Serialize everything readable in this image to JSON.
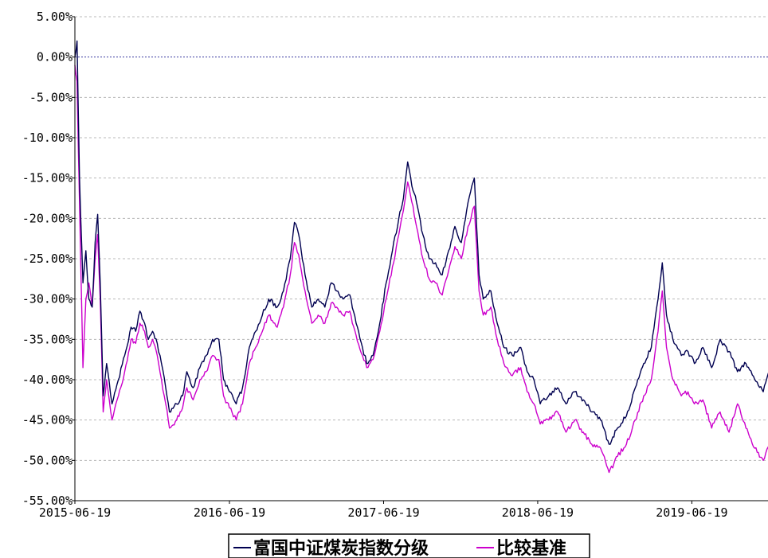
{
  "chart_data": {
    "type": "line",
    "title": "",
    "xlabel": "",
    "ylabel": "",
    "ylim": [
      -55,
      5
    ],
    "y_unit": "%",
    "y_ticks": [
      "5.00%",
      "0.00%",
      "-5.00%",
      "-10.00%",
      "-15.00%",
      "-20.00%",
      "-25.00%",
      "-30.00%",
      "-35.00%",
      "-40.00%",
      "-45.00%",
      "-50.00%",
      "-55.00%"
    ],
    "x_ticks": [
      "2015-06-19",
      "2016-06-19",
      "2017-06-19",
      "2018-06-19",
      "2019-06-19"
    ],
    "grid": true,
    "legend_position": "bottom-center",
    "series": [
      {
        "name": "富国中证煤炭指数分级",
        "color": "#000050",
        "points": [
          [
            "2015-06-19",
            0.0
          ],
          [
            "2015-06-24",
            2.0
          ],
          [
            "2015-06-30",
            -15.0
          ],
          [
            "2015-07-08",
            -28.0
          ],
          [
            "2015-07-15",
            -24.0
          ],
          [
            "2015-07-22",
            -30.0
          ],
          [
            "2015-07-30",
            -31.0
          ],
          [
            "2015-08-06",
            -23.0
          ],
          [
            "2015-08-12",
            -19.5
          ],
          [
            "2015-08-18",
            -28.0
          ],
          [
            "2015-08-25",
            -42.0
          ],
          [
            "2015-09-02",
            -38.0
          ],
          [
            "2015-09-15",
            -43.0
          ],
          [
            "2015-09-30",
            -40.0
          ],
          [
            "2015-10-15",
            -37.0
          ],
          [
            "2015-10-30",
            -33.5
          ],
          [
            "2015-11-10",
            -34.0
          ],
          [
            "2015-11-20",
            -31.5
          ],
          [
            "2015-12-01",
            -33.0
          ],
          [
            "2015-12-10",
            -35.0
          ],
          [
            "2015-12-20",
            -34.0
          ],
          [
            "2015-12-31",
            -35.5
          ],
          [
            "2016-01-10",
            -38.0
          ],
          [
            "2016-01-20",
            -41.0
          ],
          [
            "2016-01-29",
            -44.0
          ],
          [
            "2016-02-15",
            -43.0
          ],
          [
            "2016-02-29",
            -42.0
          ],
          [
            "2016-03-10",
            -39.0
          ],
          [
            "2016-03-25",
            -41.0
          ],
          [
            "2016-04-10",
            -38.5
          ],
          [
            "2016-04-25",
            -37.0
          ],
          [
            "2016-05-10",
            -35.0
          ],
          [
            "2016-05-25",
            -35.0
          ],
          [
            "2016-06-05",
            -40.0
          ],
          [
            "2016-06-19",
            -41.5
          ],
          [
            "2016-07-05",
            -43.0
          ],
          [
            "2016-07-20",
            -41.0
          ],
          [
            "2016-08-05",
            -36.0
          ],
          [
            "2016-08-20",
            -34.0
          ],
          [
            "2016-09-05",
            -32.0
          ],
          [
            "2016-09-20",
            -30.0
          ],
          [
            "2016-10-10",
            -31.0
          ],
          [
            "2016-10-25",
            -29.0
          ],
          [
            "2016-11-10",
            -25.0
          ],
          [
            "2016-11-20",
            -20.5
          ],
          [
            "2016-11-30",
            -22.0
          ],
          [
            "2016-12-15",
            -27.0
          ],
          [
            "2016-12-31",
            -31.0
          ],
          [
            "2017-01-15",
            -30.0
          ],
          [
            "2017-01-31",
            -31.0
          ],
          [
            "2017-02-15",
            -28.0
          ],
          [
            "2017-02-28",
            -29.0
          ],
          [
            "2017-03-15",
            -30.0
          ],
          [
            "2017-03-31",
            -29.5
          ],
          [
            "2017-04-15",
            -33.0
          ],
          [
            "2017-04-30",
            -36.0
          ],
          [
            "2017-05-10",
            -38.0
          ],
          [
            "2017-05-25",
            -37.0
          ],
          [
            "2017-06-10",
            -33.0
          ],
          [
            "2017-06-25",
            -28.0
          ],
          [
            "2017-07-10",
            -24.0
          ],
          [
            "2017-07-25",
            -20.0
          ],
          [
            "2017-08-05",
            -17.5
          ],
          [
            "2017-08-15",
            -13.0
          ],
          [
            "2017-08-25",
            -16.0
          ],
          [
            "2017-09-05",
            -18.0
          ],
          [
            "2017-09-20",
            -22.0
          ],
          [
            "2017-10-05",
            -25.0
          ],
          [
            "2017-10-20",
            -25.5
          ],
          [
            "2017-11-05",
            -27.0
          ],
          [
            "2017-11-20",
            -24.0
          ],
          [
            "2017-12-05",
            -21.0
          ],
          [
            "2017-12-20",
            -23.0
          ],
          [
            "2018-01-05",
            -18.0
          ],
          [
            "2018-01-20",
            -15.0
          ],
          [
            "2018-01-31",
            -27.0
          ],
          [
            "2018-02-10",
            -30.0
          ],
          [
            "2018-02-28",
            -29.0
          ],
          [
            "2018-03-15",
            -33.0
          ],
          [
            "2018-03-31",
            -36.0
          ],
          [
            "2018-04-20",
            -37.0
          ],
          [
            "2018-05-10",
            -36.0
          ],
          [
            "2018-05-25",
            -39.0
          ],
          [
            "2018-06-10",
            -40.0
          ],
          [
            "2018-06-25",
            -43.0
          ],
          [
            "2018-07-15",
            -42.0
          ],
          [
            "2018-08-05",
            -41.0
          ],
          [
            "2018-08-25",
            -43.0
          ],
          [
            "2018-09-15",
            -41.5
          ],
          [
            "2018-10-05",
            -42.5
          ],
          [
            "2018-10-25",
            -44.0
          ],
          [
            "2018-11-15",
            -45.0
          ],
          [
            "2018-12-05",
            -48.0
          ],
          [
            "2018-12-25",
            -46.0
          ],
          [
            "2019-01-15",
            -44.5
          ],
          [
            "2019-02-05",
            -41.0
          ],
          [
            "2019-02-25",
            -38.0
          ],
          [
            "2019-03-15",
            -36.0
          ],
          [
            "2019-03-31",
            -30.0
          ],
          [
            "2019-04-10",
            -25.5
          ],
          [
            "2019-04-20",
            -32.0
          ],
          [
            "2019-05-05",
            -35.0
          ],
          [
            "2019-05-25",
            -37.0
          ],
          [
            "2019-06-10",
            -36.5
          ],
          [
            "2019-06-25",
            -38.0
          ],
          [
            "2019-07-15",
            -36.0
          ],
          [
            "2019-08-05",
            -38.5
          ],
          [
            "2019-08-25",
            -35.0
          ],
          [
            "2019-09-15",
            -36.5
          ],
          [
            "2019-10-05",
            -39.0
          ],
          [
            "2019-10-25",
            -38.0
          ],
          [
            "2019-11-15",
            -40.0
          ],
          [
            "2019-12-05",
            -41.5
          ],
          [
            "2019-12-20",
            -39.0
          ],
          [
            "2019-12-31",
            -38.0
          ]
        ]
      },
      {
        "name": "比较基准",
        "color": "#cc00cc",
        "points": [
          [
            "2015-06-19",
            -1.0
          ],
          [
            "2015-06-24",
            -3.0
          ],
          [
            "2015-06-30",
            -18.0
          ],
          [
            "2015-07-08",
            -38.5
          ],
          [
            "2015-07-15",
            -30.0
          ],
          [
            "2015-07-22",
            -28.0
          ],
          [
            "2015-07-30",
            -31.0
          ],
          [
            "2015-08-06",
            -25.0
          ],
          [
            "2015-08-12",
            -22.0
          ],
          [
            "2015-08-18",
            -30.0
          ],
          [
            "2015-08-25",
            -44.0
          ],
          [
            "2015-09-02",
            -40.0
          ],
          [
            "2015-09-15",
            -45.0
          ],
          [
            "2015-09-30",
            -42.0
          ],
          [
            "2015-10-15",
            -39.0
          ],
          [
            "2015-10-30",
            -35.0
          ],
          [
            "2015-11-10",
            -35.5
          ],
          [
            "2015-11-20",
            -33.0
          ],
          [
            "2015-12-01",
            -34.0
          ],
          [
            "2015-12-10",
            -36.0
          ],
          [
            "2015-12-20",
            -35.0
          ],
          [
            "2015-12-31",
            -37.0
          ],
          [
            "2016-01-10",
            -40.0
          ],
          [
            "2016-01-20",
            -43.0
          ],
          [
            "2016-01-29",
            -46.0
          ],
          [
            "2016-02-15",
            -45.0
          ],
          [
            "2016-02-29",
            -43.5
          ],
          [
            "2016-03-10",
            -41.0
          ],
          [
            "2016-03-25",
            -42.5
          ],
          [
            "2016-04-10",
            -40.0
          ],
          [
            "2016-04-25",
            -39.0
          ],
          [
            "2016-05-10",
            -37.0
          ],
          [
            "2016-05-25",
            -37.5
          ],
          [
            "2016-06-05",
            -42.0
          ],
          [
            "2016-06-19",
            -43.5
          ],
          [
            "2016-07-05",
            -45.0
          ],
          [
            "2016-07-20",
            -43.0
          ],
          [
            "2016-08-05",
            -38.0
          ],
          [
            "2016-08-20",
            -36.0
          ],
          [
            "2016-09-05",
            -34.0
          ],
          [
            "2016-09-20",
            -32.0
          ],
          [
            "2016-10-10",
            -33.5
          ],
          [
            "2016-10-25",
            -31.0
          ],
          [
            "2016-11-10",
            -27.0
          ],
          [
            "2016-11-20",
            -23.0
          ],
          [
            "2016-11-30",
            -24.5
          ],
          [
            "2016-12-15",
            -29.0
          ],
          [
            "2016-12-31",
            -33.0
          ],
          [
            "2017-01-15",
            -32.0
          ],
          [
            "2017-01-31",
            -33.0
          ],
          [
            "2017-02-15",
            -30.5
          ],
          [
            "2017-02-28",
            -31.0
          ],
          [
            "2017-03-15",
            -32.0
          ],
          [
            "2017-03-31",
            -31.5
          ],
          [
            "2017-04-15",
            -34.5
          ],
          [
            "2017-04-30",
            -37.0
          ],
          [
            "2017-05-10",
            -38.5
          ],
          [
            "2017-05-25",
            -37.5
          ],
          [
            "2017-06-10",
            -34.0
          ],
          [
            "2017-06-25",
            -30.0
          ],
          [
            "2017-07-10",
            -26.0
          ],
          [
            "2017-07-25",
            -22.0
          ],
          [
            "2017-08-05",
            -19.0
          ],
          [
            "2017-08-15",
            -15.5
          ],
          [
            "2017-08-25",
            -18.0
          ],
          [
            "2017-09-05",
            -21.0
          ],
          [
            "2017-09-20",
            -25.0
          ],
          [
            "2017-10-05",
            -27.5
          ],
          [
            "2017-10-20",
            -28.0
          ],
          [
            "2017-11-05",
            -29.5
          ],
          [
            "2017-11-20",
            -26.5
          ],
          [
            "2017-12-05",
            -23.5
          ],
          [
            "2017-12-20",
            -25.0
          ],
          [
            "2018-01-05",
            -21.0
          ],
          [
            "2018-01-20",
            -18.5
          ],
          [
            "2018-01-31",
            -29.0
          ],
          [
            "2018-02-10",
            -32.0
          ],
          [
            "2018-02-28",
            -31.0
          ],
          [
            "2018-03-15",
            -35.0
          ],
          [
            "2018-03-31",
            -38.0
          ],
          [
            "2018-04-20",
            -39.5
          ],
          [
            "2018-05-10",
            -38.5
          ],
          [
            "2018-05-25",
            -41.5
          ],
          [
            "2018-06-10",
            -43.0
          ],
          [
            "2018-06-25",
            -45.5
          ],
          [
            "2018-07-15",
            -45.0
          ],
          [
            "2018-08-05",
            -44.0
          ],
          [
            "2018-08-25",
            -46.5
          ],
          [
            "2018-09-15",
            -45.0
          ],
          [
            "2018-10-05",
            -46.5
          ],
          [
            "2018-10-25",
            -48.0
          ],
          [
            "2018-11-15",
            -48.5
          ],
          [
            "2018-12-05",
            -51.5
          ],
          [
            "2018-12-25",
            -49.5
          ],
          [
            "2019-01-15",
            -48.0
          ],
          [
            "2019-02-05",
            -45.0
          ],
          [
            "2019-02-25",
            -42.0
          ],
          [
            "2019-03-15",
            -40.0
          ],
          [
            "2019-03-31",
            -34.0
          ],
          [
            "2019-04-10",
            -29.0
          ],
          [
            "2019-04-20",
            -36.0
          ],
          [
            "2019-05-05",
            -40.0
          ],
          [
            "2019-05-25",
            -42.0
          ],
          [
            "2019-06-10",
            -41.5
          ],
          [
            "2019-06-25",
            -43.0
          ],
          [
            "2019-07-15",
            -42.5
          ],
          [
            "2019-08-05",
            -46.0
          ],
          [
            "2019-08-25",
            -44.0
          ],
          [
            "2019-09-15",
            -46.5
          ],
          [
            "2019-10-05",
            -43.0
          ],
          [
            "2019-10-25",
            -46.0
          ],
          [
            "2019-11-15",
            -48.5
          ],
          [
            "2019-12-05",
            -50.0
          ],
          [
            "2019-12-20",
            -48.0
          ],
          [
            "2019-12-31",
            -47.5
          ]
        ]
      }
    ]
  }
}
